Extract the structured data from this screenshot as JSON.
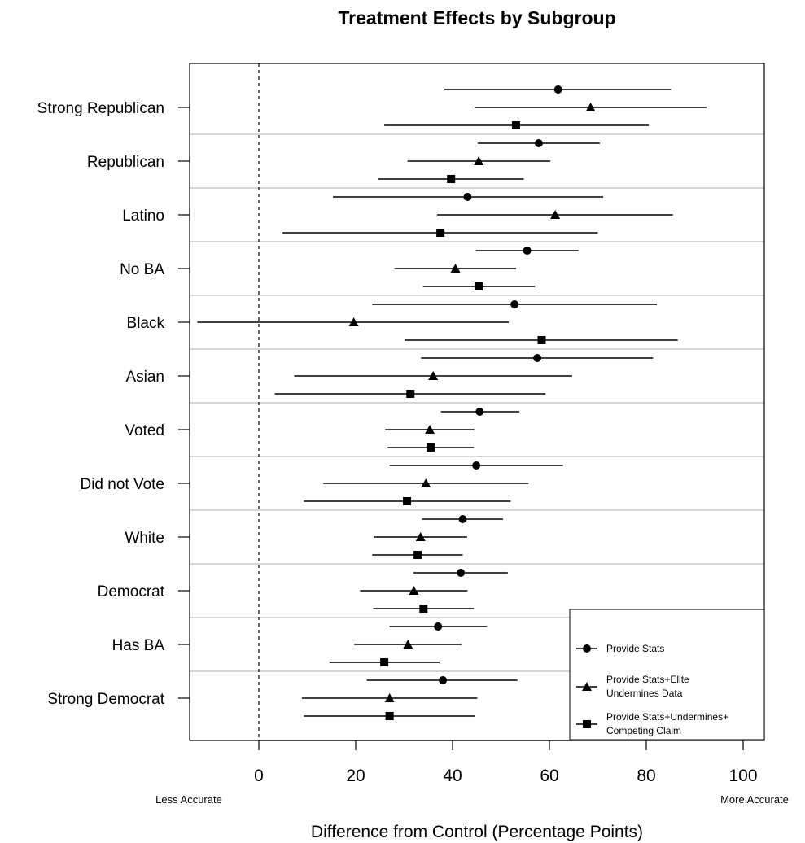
{
  "chart_data": {
    "type": "scatter",
    "subtype": "dot-and-whisker",
    "title": "Treatment Effects by Subgroup",
    "xlabel": "Difference from Control (Percentage Points)",
    "x_left_note": "Less Accurate",
    "x_right_note": "More Accurate",
    "xlim": [
      -15,
      105
    ],
    "xticks": [
      0,
      20,
      40,
      60,
      80,
      100
    ],
    "reference_line": {
      "x": 0,
      "style": "dashed"
    },
    "grid": "horizontal separators between subgroups",
    "legend_position": "bottom-right",
    "categories": [
      "Strong Republican",
      "Republican",
      "Latino",
      "No BA",
      "Black",
      "Asian",
      "Voted",
      "Did not Vote",
      "White",
      "Democrat",
      "Has BA",
      "Strong Democrat"
    ],
    "series": [
      {
        "name": "Provide Stats",
        "marker": "circle",
        "estimates": [
          61.8,
          57.8,
          43.1,
          55.4,
          52.8,
          57.5,
          45.6,
          44.9,
          42.1,
          41.7,
          37.0,
          38.0
        ],
        "ci_low": [
          38.3,
          45.2,
          15.3,
          44.8,
          23.4,
          33.5,
          37.6,
          27.0,
          33.7,
          31.9,
          27.0,
          22.3
        ],
        "ci_high": [
          85.1,
          70.4,
          71.1,
          66.0,
          82.2,
          81.4,
          53.8,
          62.8,
          50.4,
          51.4,
          47.1,
          53.4
        ]
      },
      {
        "name": "Provide Stats+Elite\nUndermines Data",
        "marker": "triangle",
        "estimates": [
          68.5,
          45.4,
          61.2,
          40.6,
          19.6,
          36.0,
          35.3,
          34.5,
          33.4,
          32.0,
          30.8,
          27.0
        ],
        "ci_low": [
          44.6,
          30.7,
          36.8,
          28.0,
          -12.7,
          7.3,
          26.1,
          13.3,
          23.7,
          20.9,
          19.7,
          8.9
        ],
        "ci_high": [
          92.4,
          60.2,
          85.5,
          53.1,
          51.6,
          64.7,
          44.5,
          55.7,
          43.0,
          43.1,
          41.9,
          45.1
        ]
      },
      {
        "name": "Provide Stats+Undermines+\nCompeting Claim",
        "marker": "square",
        "estimates": [
          53.1,
          39.7,
          37.5,
          45.4,
          58.4,
          31.3,
          35.5,
          30.6,
          32.8,
          34.0,
          25.9,
          27.0
        ],
        "ci_low": [
          25.9,
          24.6,
          4.9,
          33.9,
          30.1,
          3.3,
          26.6,
          9.3,
          23.4,
          23.6,
          14.6,
          9.3
        ],
        "ci_high": [
          80.5,
          54.7,
          70.0,
          57.0,
          86.5,
          59.2,
          44.4,
          52.0,
          42.1,
          44.4,
          37.3,
          44.7
        ]
      }
    ]
  }
}
